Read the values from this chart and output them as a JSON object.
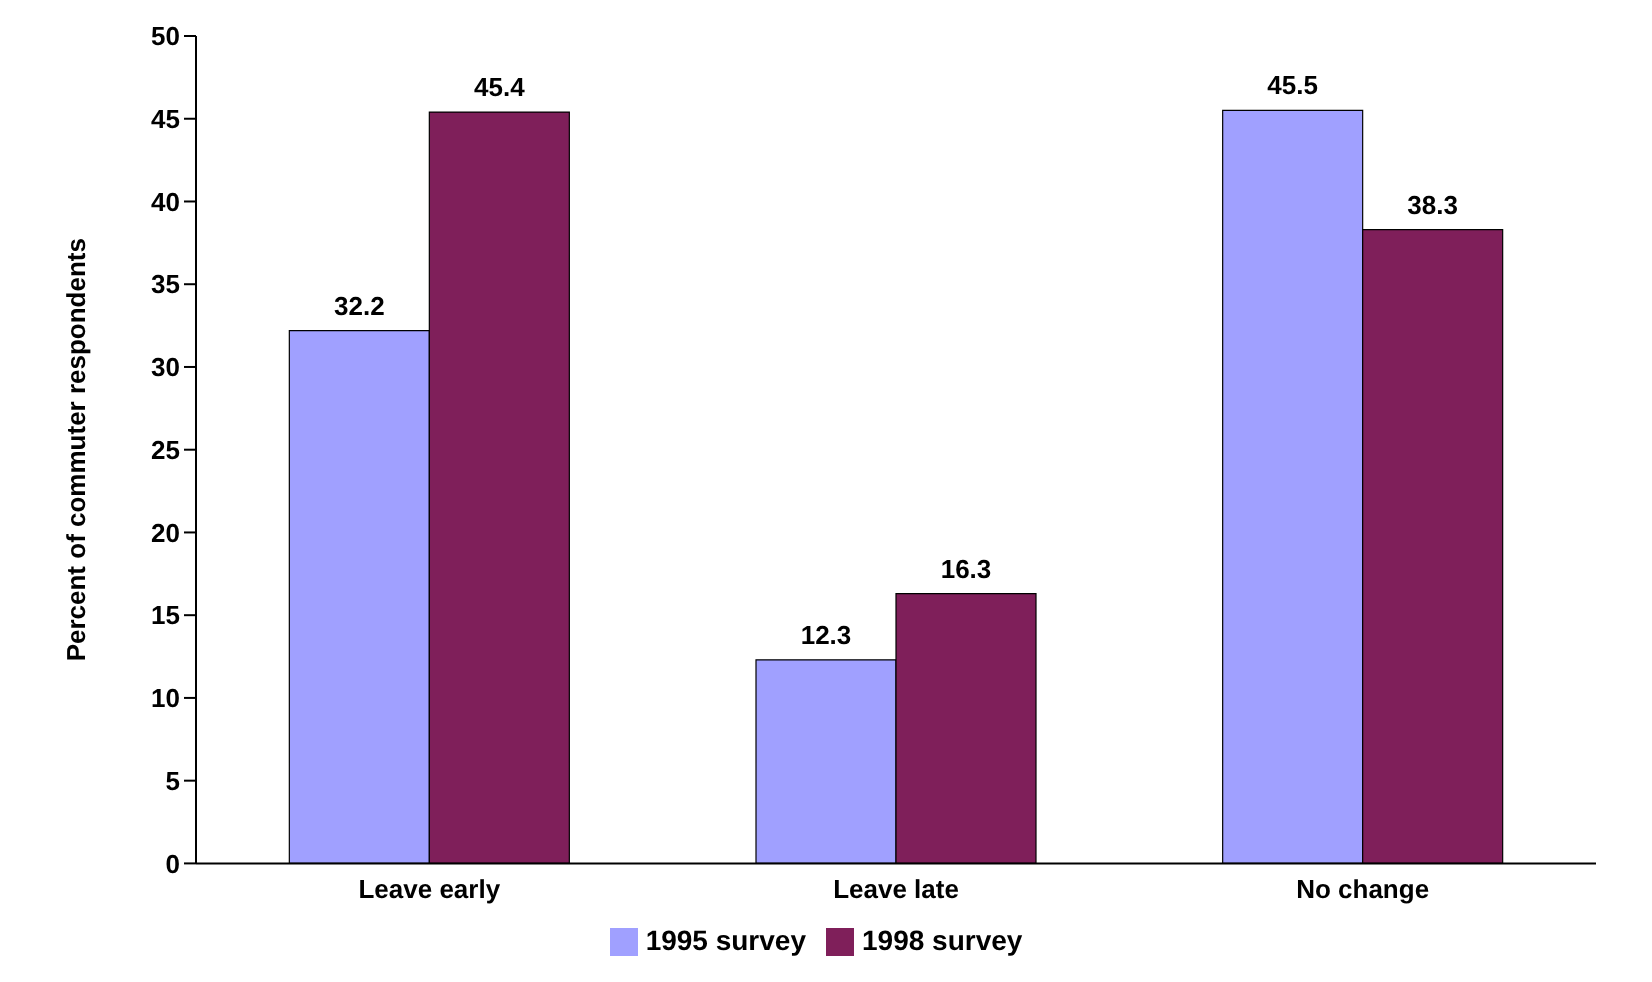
{
  "chart_data": {
    "type": "bar",
    "ylabel": "Percent of commuter respondents",
    "categories": [
      "Leave early",
      "Leave late",
      "No change"
    ],
    "series": [
      {
        "name": "1995 survey",
        "color": "#a0a0ff",
        "values": [
          32.2,
          12.3,
          45.5
        ]
      },
      {
        "name": "1998 survey",
        "color": "#7f1f5a",
        "values": [
          45.4,
          16.3,
          38.3
        ]
      }
    ],
    "ylim": [
      0,
      50
    ],
    "yticks": [
      0,
      5,
      10,
      15,
      20,
      25,
      30,
      35,
      40,
      45,
      50
    ],
    "data_labels": true,
    "legend": "bottom",
    "grid": false
  }
}
